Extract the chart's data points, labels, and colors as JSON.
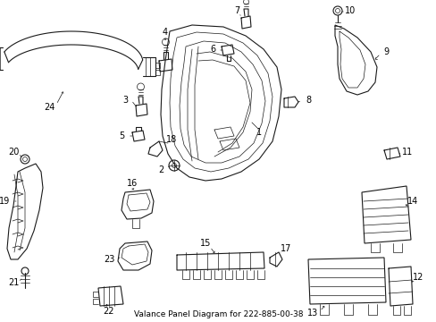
{
  "title": "Valance Panel Diagram for 222-885-00-38",
  "background_color": "#ffffff",
  "line_color": "#1a1a1a",
  "text_color": "#000000",
  "fig_width": 4.89,
  "fig_height": 3.6,
  "dpi": 100
}
